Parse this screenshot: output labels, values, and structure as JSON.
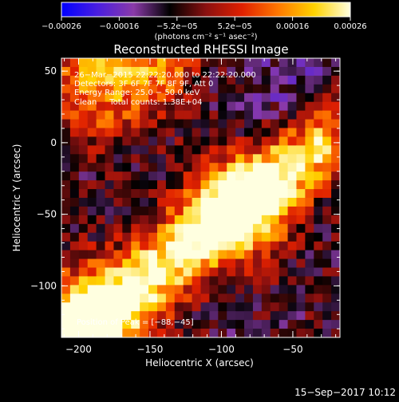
{
  "chart_data": {
    "type": "heatmap",
    "title": "Reconstructed RHESSI Image",
    "xlabel": "Heliocentric X (arcsec)",
    "ylabel": "Heliocentric Y (arcsec)",
    "xlim": [
      -212,
      -17
    ],
    "ylim": [
      -136,
      59
    ],
    "x_ticks": [
      -200,
      -150,
      -100,
      -50
    ],
    "x_tick_labels": [
      "−200",
      "−150",
      "−100",
      "−50"
    ],
    "y_ticks": [
      50,
      0,
      -50,
      -100
    ],
    "y_tick_labels": [
      "50",
      "0",
      "−50",
      "−100"
    ],
    "colorbar": {
      "range": [
        -0.00026,
        0.00026
      ],
      "tick_labels": [
        "−0.00026",
        "−0.00016",
        "−5.2e−05",
        "5.2e−05",
        "0.00016",
        "0.00026"
      ],
      "units_label": "(photons cm⁻² s⁻¹ asec⁻²)",
      "colors": [
        "#0000ff",
        "#4a1ee0",
        "#8a3aa8",
        "#000000",
        "#8a1010",
        "#e02000",
        "#ff7800",
        "#ffd200",
        "#ffffe0"
      ]
    },
    "annotations": [
      "26−Mar−2015 22:22:20.000 to 22:22:20.000",
      "Detectors: 3F 6F 7F 7F 8F 9F, Att 0",
      "Energy Range: 25.0 − 50.0 keV",
      "Clean     Total counts: 1.38E+04"
    ],
    "peak_label": "Position of Peak = [−88,−45]",
    "peak": [
      -88,
      -45
    ],
    "timestamp": "15−Sep−2017 10:12"
  }
}
